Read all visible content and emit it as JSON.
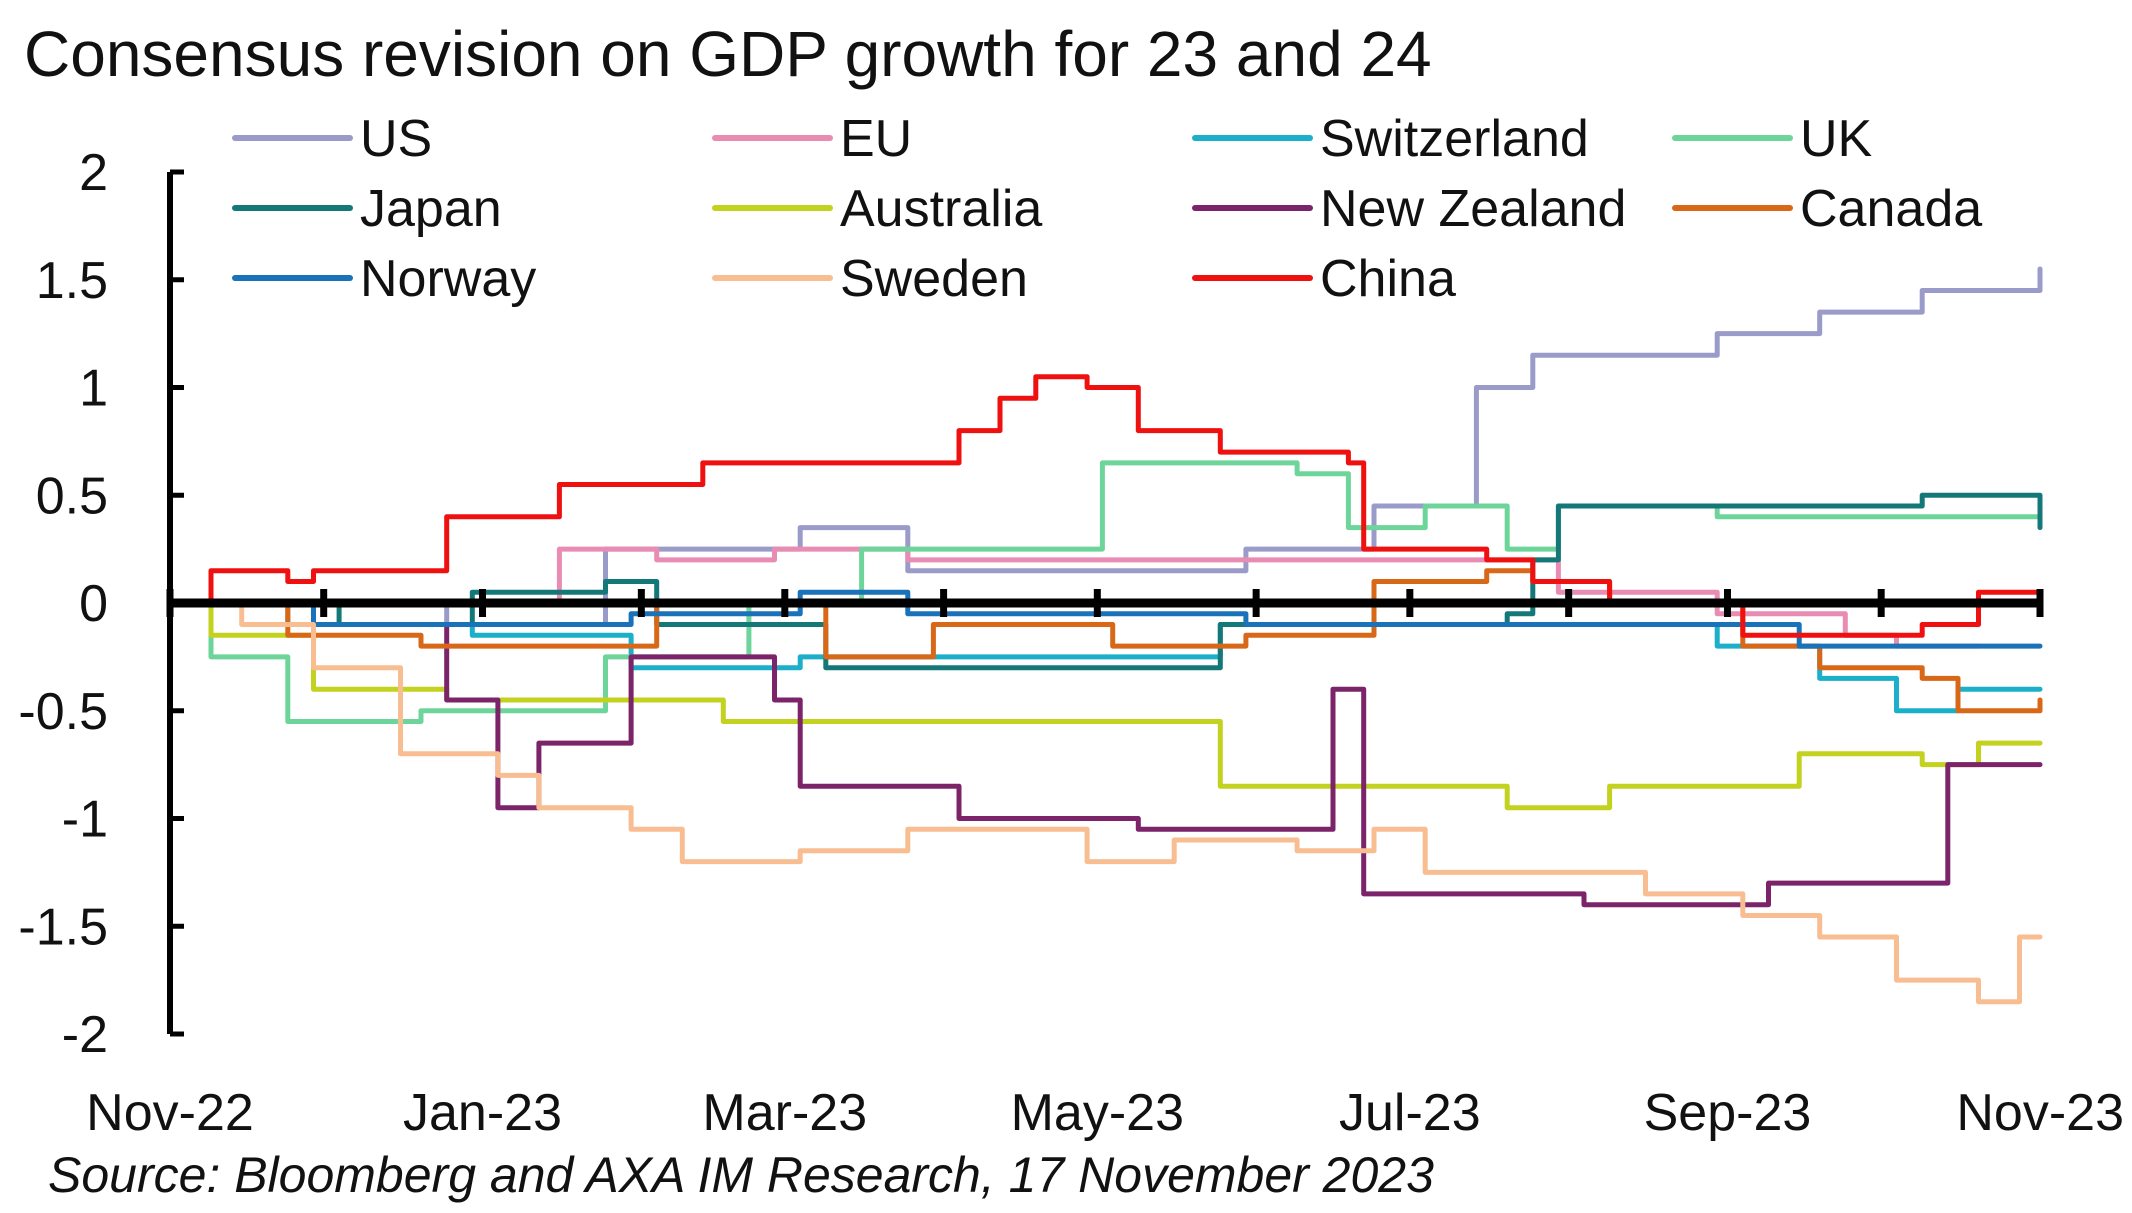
{
  "chart_data": {
    "type": "line",
    "title": "Consensus revision on GDP growth for 23 and 24",
    "source": "Source: Bloomberg and AXA IM Research, 17 November 2023",
    "xlabel": "",
    "ylabel": "",
    "ylim": [
      -2,
      2
    ],
    "yticks": [
      "2",
      "1.5",
      "1",
      "0.5",
      "0",
      "-0.5",
      "-1",
      "-1.5",
      "-2"
    ],
    "xticks": [
      "Nov-22",
      "Jan-23",
      "Mar-23",
      "May-23",
      "Jul-23",
      "Sep-23",
      "Nov-23"
    ],
    "xdomain": [
      "2022-11-17",
      "2023-11-17"
    ],
    "legend_position": "top",
    "grid": false,
    "series": [
      {
        "name": "US",
        "color": "#9b9bc9",
        "points": [
          [
            "2022-11-17",
            0
          ],
          [
            "2022-12-15",
            0
          ],
          [
            "2023-01-10",
            -0.1
          ],
          [
            "2023-02-10",
            0.25
          ],
          [
            "2023-03-20",
            0.35
          ],
          [
            "2023-04-10",
            0.15
          ],
          [
            "2023-05-20",
            0.15
          ],
          [
            "2023-06-15",
            0.25
          ],
          [
            "2023-07-10",
            0.45
          ],
          [
            "2023-07-28",
            0.45
          ],
          [
            "2023-07-30",
            1.0
          ],
          [
            "2023-08-10",
            1.15
          ],
          [
            "2023-09-15",
            1.25
          ],
          [
            "2023-10-05",
            1.35
          ],
          [
            "2023-10-25",
            1.45
          ],
          [
            "2023-11-17",
            1.55
          ]
        ]
      },
      {
        "name": "EU",
        "color": "#e98cb3",
        "points": [
          [
            "2022-11-17",
            0
          ],
          [
            "2023-01-05",
            0
          ],
          [
            "2023-02-01",
            0.25
          ],
          [
            "2023-02-20",
            0.2
          ],
          [
            "2023-03-15",
            0.25
          ],
          [
            "2023-04-10",
            0.2
          ],
          [
            "2023-05-20",
            0.2
          ],
          [
            "2023-07-05",
            0.2
          ],
          [
            "2023-07-30",
            0.2
          ],
          [
            "2023-08-15",
            0.05
          ],
          [
            "2023-09-15",
            -0.05
          ],
          [
            "2023-10-10",
            -0.15
          ],
          [
            "2023-10-20",
            -0.2
          ],
          [
            "2023-11-05",
            -0.2
          ]
        ]
      },
      {
        "name": "Switzerland",
        "color": "#1bafca",
        "points": [
          [
            "2022-11-17",
            0
          ],
          [
            "2022-12-10",
            -0.1
          ],
          [
            "2023-01-15",
            -0.15
          ],
          [
            "2023-02-15",
            -0.3
          ],
          [
            "2023-03-20",
            -0.25
          ],
          [
            "2023-05-20",
            -0.25
          ],
          [
            "2023-06-10",
            -0.1
          ],
          [
            "2023-07-20",
            -0.1
          ],
          [
            "2023-08-20",
            -0.1
          ],
          [
            "2023-09-15",
            -0.2
          ],
          [
            "2023-10-05",
            -0.35
          ],
          [
            "2023-10-20",
            -0.5
          ],
          [
            "2023-11-01",
            -0.4
          ],
          [
            "2023-11-17",
            -0.4
          ]
        ]
      },
      {
        "name": "UK",
        "color": "#6ed59a",
        "points": [
          [
            "2022-11-17",
            0
          ],
          [
            "2022-11-25",
            -0.25
          ],
          [
            "2022-12-10",
            -0.55
          ],
          [
            "2023-01-05",
            -0.5
          ],
          [
            "2023-02-10",
            -0.25
          ],
          [
            "2023-03-10",
            0.0
          ],
          [
            "2023-03-25",
            0.0
          ],
          [
            "2023-04-01",
            0.25
          ],
          [
            "2023-05-10",
            0.25
          ],
          [
            "2023-05-18",
            0.65
          ],
          [
            "2023-06-25",
            0.6
          ],
          [
            "2023-07-05",
            0.35
          ],
          [
            "2023-07-20",
            0.45
          ],
          [
            "2023-08-05",
            0.25
          ],
          [
            "2023-08-15",
            0.45
          ],
          [
            "2023-09-15",
            0.4
          ],
          [
            "2023-10-15",
            0.4
          ],
          [
            "2023-11-17",
            0.45
          ]
        ]
      },
      {
        "name": "Japan",
        "color": "#157878",
        "points": [
          [
            "2022-11-17",
            0
          ],
          [
            "2022-12-20",
            -0.1
          ],
          [
            "2023-01-15",
            0.05
          ],
          [
            "2023-02-10",
            0.1
          ],
          [
            "2023-02-20",
            -0.1
          ],
          [
            "2023-03-10",
            -0.1
          ],
          [
            "2023-03-25",
            -0.3
          ],
          [
            "2023-04-15",
            -0.3
          ],
          [
            "2023-05-20",
            -0.3
          ],
          [
            "2023-06-10",
            -0.1
          ],
          [
            "2023-07-20",
            -0.1
          ],
          [
            "2023-08-05",
            -0.05
          ],
          [
            "2023-08-10",
            0.2
          ],
          [
            "2023-08-15",
            0.45
          ],
          [
            "2023-10-15",
            0.45
          ],
          [
            "2023-10-25",
            0.5
          ],
          [
            "2023-11-10",
            0.5
          ],
          [
            "2023-11-17",
            0.35
          ]
        ]
      },
      {
        "name": "Australia",
        "color": "#c3d11f",
        "points": [
          [
            "2022-11-17",
            0
          ],
          [
            "2022-11-25",
            -0.15
          ],
          [
            "2022-12-15",
            -0.4
          ],
          [
            "2023-01-10",
            -0.45
          ],
          [
            "2023-03-01",
            -0.45
          ],
          [
            "2023-03-05",
            -0.55
          ],
          [
            "2023-04-15",
            -0.55
          ],
          [
            "2023-06-01",
            -0.55
          ],
          [
            "2023-06-10",
            -0.85
          ],
          [
            "2023-08-01",
            -0.85
          ],
          [
            "2023-08-05",
            -0.95
          ],
          [
            "2023-08-25",
            -0.85
          ],
          [
            "2023-09-25",
            -0.85
          ],
          [
            "2023-10-01",
            -0.7
          ],
          [
            "2023-10-25",
            -0.75
          ],
          [
            "2023-11-05",
            -0.65
          ],
          [
            "2023-11-17",
            -0.65
          ]
        ]
      },
      {
        "name": "New Zealand",
        "color": "#7b2469",
        "points": [
          [
            "2022-11-17",
            0
          ],
          [
            "2022-12-15",
            -0.1
          ],
          [
            "2023-01-05",
            -0.1
          ],
          [
            "2023-01-10",
            -0.45
          ],
          [
            "2023-01-20",
            -0.95
          ],
          [
            "2023-01-28",
            -0.65
          ],
          [
            "2023-02-10",
            -0.65
          ],
          [
            "2023-02-15",
            -0.25
          ],
          [
            "2023-03-15",
            -0.45
          ],
          [
            "2023-03-20",
            -0.85
          ],
          [
            "2023-04-15",
            -0.85
          ],
          [
            "2023-04-20",
            -1.0
          ],
          [
            "2023-05-15",
            -1.0
          ],
          [
            "2023-05-25",
            -1.05
          ],
          [
            "2023-06-30",
            -1.05
          ],
          [
            "2023-07-02",
            -0.4
          ],
          [
            "2023-07-06",
            -0.4
          ],
          [
            "2023-07-08",
            -1.35
          ],
          [
            "2023-08-15",
            -1.35
          ],
          [
            "2023-08-20",
            -1.4
          ],
          [
            "2023-09-20",
            -1.4
          ],
          [
            "2023-09-25",
            -1.3
          ],
          [
            "2023-10-25",
            -1.3
          ],
          [
            "2023-10-30",
            -0.75
          ],
          [
            "2023-11-17",
            -0.75
          ]
        ]
      },
      {
        "name": "Canada",
        "color": "#d86818",
        "points": [
          [
            "2022-11-17",
            0
          ],
          [
            "2022-12-10",
            -0.15
          ],
          [
            "2023-01-05",
            -0.2
          ],
          [
            "2023-02-15",
            -0.2
          ],
          [
            "2023-02-20",
            0.0
          ],
          [
            "2023-03-15",
            0.0
          ],
          [
            "2023-03-25",
            -0.25
          ],
          [
            "2023-04-15",
            -0.1
          ],
          [
            "2023-05-10",
            -0.1
          ],
          [
            "2023-05-20",
            -0.2
          ],
          [
            "2023-06-15",
            -0.15
          ],
          [
            "2023-07-10",
            0.1
          ],
          [
            "2023-08-01",
            0.15
          ],
          [
            "2023-08-10",
            0.1
          ],
          [
            "2023-08-25",
            0.0
          ],
          [
            "2023-09-20",
            -0.2
          ],
          [
            "2023-10-05",
            -0.3
          ],
          [
            "2023-10-25",
            -0.35
          ],
          [
            "2023-11-01",
            -0.5
          ],
          [
            "2023-11-17",
            -0.45
          ]
        ]
      },
      {
        "name": "Norway",
        "color": "#1a72b8",
        "points": [
          [
            "2022-11-17",
            0
          ],
          [
            "2022-12-15",
            -0.1
          ],
          [
            "2023-01-15",
            -0.1
          ],
          [
            "2023-02-15",
            -0.05
          ],
          [
            "2023-03-20",
            0.05
          ],
          [
            "2023-04-10",
            -0.05
          ],
          [
            "2023-05-15",
            -0.05
          ],
          [
            "2023-06-15",
            -0.1
          ],
          [
            "2023-07-15",
            -0.1
          ],
          [
            "2023-08-15",
            -0.1
          ],
          [
            "2023-09-15",
            -0.1
          ],
          [
            "2023-10-01",
            -0.2
          ],
          [
            "2023-11-17",
            -0.2
          ]
        ]
      },
      {
        "name": "Sweden",
        "color": "#f8be92",
        "points": [
          [
            "2022-11-17",
            0
          ],
          [
            "2022-12-01",
            -0.1
          ],
          [
            "2022-12-15",
            -0.3
          ],
          [
            "2023-01-01",
            -0.7
          ],
          [
            "2023-01-15",
            -0.7
          ],
          [
            "2023-01-20",
            -0.8
          ],
          [
            "2023-01-28",
            -0.95
          ],
          [
            "2023-02-15",
            -1.05
          ],
          [
            "2023-02-25",
            -1.2
          ],
          [
            "2023-03-20",
            -1.15
          ],
          [
            "2023-04-10",
            -1.05
          ],
          [
            "2023-05-10",
            -1.05
          ],
          [
            "2023-05-15",
            -1.2
          ],
          [
            "2023-06-01",
            -1.1
          ],
          [
            "2023-06-25",
            -1.15
          ],
          [
            "2023-07-10",
            -1.05
          ],
          [
            "2023-07-20",
            -1.25
          ],
          [
            "2023-08-20",
            -1.25
          ],
          [
            "2023-09-01",
            -1.35
          ],
          [
            "2023-09-20",
            -1.45
          ],
          [
            "2023-10-05",
            -1.55
          ],
          [
            "2023-10-20",
            -1.75
          ],
          [
            "2023-11-05",
            -1.85
          ],
          [
            "2023-11-12",
            -1.85
          ],
          [
            "2023-11-13",
            -1.55
          ],
          [
            "2023-11-17",
            -1.55
          ]
        ]
      },
      {
        "name": "China",
        "color": "#ef1010",
        "points": [
          [
            "2022-11-17",
            0
          ],
          [
            "2022-11-25",
            0.15
          ],
          [
            "2022-12-10",
            0.1
          ],
          [
            "2022-12-15",
            0.15
          ],
          [
            "2023-01-05",
            0.15
          ],
          [
            "2023-01-10",
            0.4
          ],
          [
            "2023-02-01",
            0.55
          ],
          [
            "2023-03-01",
            0.65
          ],
          [
            "2023-04-15",
            0.65
          ],
          [
            "2023-04-20",
            0.8
          ],
          [
            "2023-04-28",
            0.95
          ],
          [
            "2023-05-05",
            1.05
          ],
          [
            "2023-05-15",
            1.0
          ],
          [
            "2023-05-25",
            0.8
          ],
          [
            "2023-06-10",
            0.7
          ],
          [
            "2023-07-05",
            0.65
          ],
          [
            "2023-07-08",
            0.25
          ],
          [
            "2023-08-01",
            0.2
          ],
          [
            "2023-08-10",
            0.1
          ],
          [
            "2023-08-25",
            0.0
          ],
          [
            "2023-09-20",
            -0.15
          ],
          [
            "2023-10-20",
            -0.15
          ],
          [
            "2023-10-25",
            -0.1
          ],
          [
            "2023-11-05",
            0.05
          ],
          [
            "2023-11-17",
            0.05
          ]
        ]
      }
    ]
  }
}
